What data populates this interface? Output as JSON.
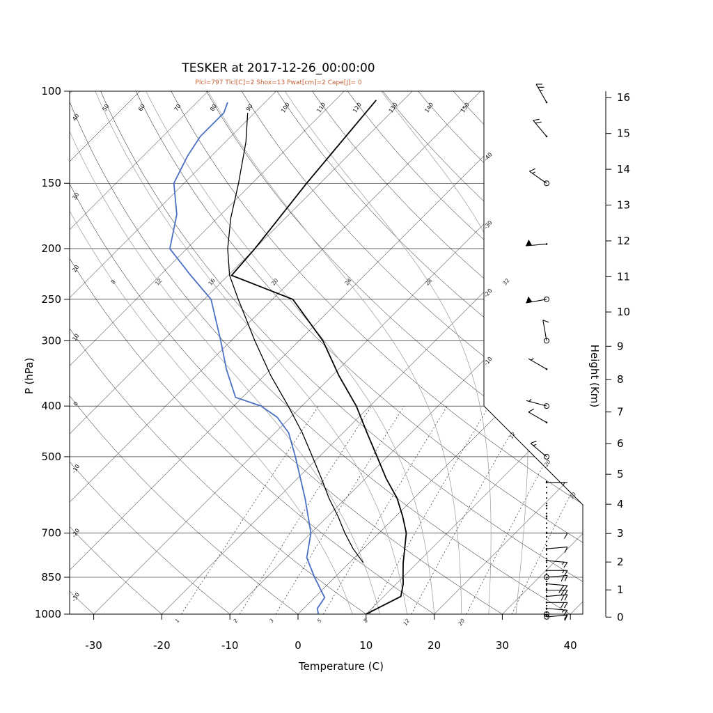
{
  "header": {
    "title": "TESKER at 2017-12-26_00:00:00",
    "subtitle": "Plcl=797 Tlcl[C]=2 Shox=13 Pwat[cm]=2 Cape[J]= 0"
  },
  "chart_data": {
    "type": "skewt_log_p_sounding",
    "station": "TESKER",
    "datetime": "2017-12-26_00:00:00",
    "indices": {
      "Plcl": 797,
      "Tlcl_C": 2,
      "Shox": 13,
      "Pwat_cm": 2,
      "Cape_J": 0
    },
    "axes": {
      "pressure_label": "P (hPa)",
      "pressure_ticks": [
        100,
        150,
        200,
        250,
        300,
        400,
        500,
        700,
        850,
        1000
      ],
      "temperature_label": "Temperature (C)",
      "temperature_ticks": [
        -30,
        -20,
        -10,
        0,
        10,
        20,
        30,
        40
      ],
      "height_label": "Height (Km)",
      "height_ticks_km": [
        0,
        1,
        2,
        3,
        4,
        5,
        6,
        7,
        8,
        9,
        10,
        11,
        12,
        13,
        14,
        15,
        16
      ]
    },
    "grid": {
      "isotherms_c": [
        -110,
        -100,
        -90,
        -80,
        -70,
        -60,
        -50,
        -40,
        -30,
        -20,
        -10,
        0,
        10,
        20,
        30,
        40
      ],
      "isotherm_edge_labels_c": [
        -40,
        -30,
        -20,
        -10
      ],
      "dry_adiabats_c": [
        -30,
        -20,
        -10,
        0,
        10,
        20,
        30,
        40,
        50,
        60,
        70,
        80,
        90,
        100,
        110,
        120,
        130,
        140,
        150,
        160
      ],
      "moist_adiabats_c": [
        8,
        12,
        16,
        20,
        24,
        28,
        32
      ],
      "mixing_ratio_gkg": [
        1,
        2,
        3,
        5,
        8,
        12,
        20,
        30
      ],
      "mixing_ratio_bottom_labels": [
        1,
        2,
        3,
        5,
        8,
        12,
        20
      ],
      "mixing_ratio_top_labels": [
        12,
        20,
        30
      ]
    },
    "temperature_profile_p_c": [
      [
        1015,
        10
      ],
      [
        1000,
        10
      ],
      [
        925,
        12.5
      ],
      [
        875,
        11
      ],
      [
        850,
        10
      ],
      [
        800,
        8
      ],
      [
        700,
        4
      ],
      [
        650,
        1
      ],
      [
        600,
        -2.5
      ],
      [
        550,
        -7
      ],
      [
        500,
        -11.5
      ],
      [
        450,
        -16.5
      ],
      [
        400,
        -22
      ],
      [
        350,
        -29
      ],
      [
        300,
        -36.5
      ],
      [
        250,
        -47
      ],
      [
        225,
        -59.5
      ],
      [
        200,
        -60
      ],
      [
        150,
        -62
      ],
      [
        104,
        -64
      ]
    ],
    "dewpoint_profile_p_c": [
      [
        1015,
        3
      ],
      [
        1000,
        3
      ],
      [
        975,
        2
      ],
      [
        930,
        1.5
      ],
      [
        850,
        -3
      ],
      [
        780,
        -7
      ],
      [
        700,
        -10
      ],
      [
        600,
        -16
      ],
      [
        500,
        -23.5
      ],
      [
        450,
        -28
      ],
      [
        420,
        -32
      ],
      [
        400,
        -36
      ],
      [
        385,
        -41
      ],
      [
        340,
        -46.5
      ],
      [
        300,
        -51.5
      ],
      [
        250,
        -59
      ],
      [
        225,
        -65.5
      ],
      [
        200,
        -72.5
      ],
      [
        172,
        -76.5
      ],
      [
        150,
        -81.5
      ],
      [
        133,
        -83.5
      ],
      [
        122,
        -84.5
      ],
      [
        110,
        -84.5
      ],
      [
        105,
        -85.5
      ]
    ],
    "parcel_profile_p_c": [
      [
        797,
        2
      ],
      [
        750,
        -1.5
      ],
      [
        700,
        -5
      ],
      [
        650,
        -8.5
      ],
      [
        600,
        -12.5
      ],
      [
        550,
        -16.5
      ],
      [
        500,
        -21
      ],
      [
        450,
        -26
      ],
      [
        400,
        -32
      ],
      [
        350,
        -39
      ],
      [
        300,
        -46.5
      ],
      [
        250,
        -55
      ],
      [
        225,
        -59.8
      ],
      [
        200,
        -64
      ],
      [
        175,
        -68
      ],
      [
        150,
        -72
      ],
      [
        125,
        -77
      ],
      [
        110,
        -81
      ]
    ],
    "wind_barbs": [
      {
        "p": 105,
        "spd": 25,
        "dir": 330,
        "marker": "none"
      },
      {
        "p": 122,
        "spd": 20,
        "dir": 320,
        "marker": "none"
      },
      {
        "p": 150,
        "spd": 15,
        "dir": 305,
        "marker": "circle"
      },
      {
        "p": 196,
        "spd": 50,
        "dir": 265,
        "marker": "none"
      },
      {
        "p": 250,
        "spd": 50,
        "dir": 260,
        "marker": "circle"
      },
      {
        "p": 300,
        "spd": 10,
        "dir": 350,
        "marker": "circle"
      },
      {
        "p": 340,
        "spd": 5,
        "dir": 300,
        "marker": "none"
      },
      {
        "p": 400,
        "spd": 5,
        "dir": 285,
        "marker": "circle"
      },
      {
        "p": 430,
        "spd": 10,
        "dir": 300,
        "marker": "none"
      },
      {
        "p": 500,
        "spd": 15,
        "dir": 310,
        "marker": "circle"
      },
      {
        "p": 560,
        "spd": 3,
        "dir": 90,
        "marker": "dot"
      },
      {
        "p": 620,
        "spd": 0,
        "dir": 0,
        "marker": "dot"
      },
      {
        "p": 650,
        "spd": 0,
        "dir": 0,
        "marker": "dot"
      },
      {
        "p": 700,
        "spd": 10,
        "dir": 90,
        "marker": "dot"
      },
      {
        "p": 750,
        "spd": 10,
        "dir": 85,
        "marker": "dot"
      },
      {
        "p": 790,
        "spd": 15,
        "dir": 95,
        "marker": "dot"
      },
      {
        "p": 825,
        "spd": 15,
        "dir": 90,
        "marker": "dot"
      },
      {
        "p": 850,
        "spd": 20,
        "dir": 85,
        "marker": "circle"
      },
      {
        "p": 875,
        "spd": 20,
        "dir": 95,
        "marker": "dot"
      },
      {
        "p": 900,
        "spd": 25,
        "dir": 90,
        "marker": "dot"
      },
      {
        "p": 925,
        "spd": 20,
        "dir": 85,
        "marker": "dot"
      },
      {
        "p": 950,
        "spd": 20,
        "dir": 90,
        "marker": "dot"
      },
      {
        "p": 975,
        "spd": 15,
        "dir": 95,
        "marker": "dot"
      },
      {
        "p": 1000,
        "spd": 10,
        "dir": 90,
        "marker": "circle"
      },
      {
        "p": 1012,
        "spd": 10,
        "dir": 85,
        "marker": "circle"
      }
    ],
    "level_dots_p": [
      558,
      572,
      586,
      600,
      614,
      628,
      642,
      656,
      670,
      684,
      698,
      712,
      726,
      740,
      754,
      768,
      782,
      796,
      810,
      824,
      838,
      852,
      866,
      880,
      894,
      908,
      922,
      936,
      950,
      964,
      978,
      992,
      1006
    ],
    "colors": {
      "temperature": "#000000",
      "dewpoint": "#4a6fc4",
      "parcel": "#000000",
      "subtitle": "#c65d33",
      "grid": "#000000",
      "moist_adiabat": "#999999",
      "mixing_ratio": "#444444"
    }
  }
}
